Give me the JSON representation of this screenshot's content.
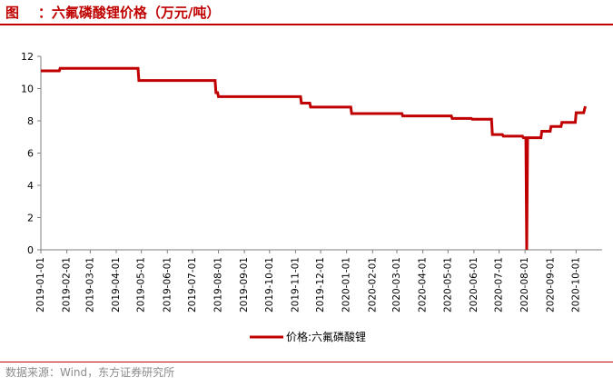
{
  "header": {
    "title": "图    ：六氟磷酸锂价格（万元/吨）"
  },
  "footer": {
    "source": "数据来源：Wind，东方证券研究所"
  },
  "colors": {
    "accent": "#c00000",
    "series": "#c00000",
    "axis": "#7f7f7f",
    "source_text": "#8c8c8c"
  },
  "chart_data": {
    "type": "line",
    "title": "",
    "xlabel": "",
    "ylabel": "",
    "ylim": [
      0,
      12
    ],
    "yticks": [
      "0",
      "2",
      "4",
      "6",
      "8",
      "10",
      "12"
    ],
    "xlim": [
      "2019-01-01",
      "2020-11-01"
    ],
    "xticks": [
      "2019-01-01",
      "2019-02-01",
      "2019-03-01",
      "2019-04-01",
      "2019-05-01",
      "2019-06-01",
      "2019-07-01",
      "2019-08-01",
      "2019-09-01",
      "2019-10-01",
      "2019-11-01",
      "2019-12-01",
      "2020-01-01",
      "2020-02-01",
      "2020-03-01",
      "2020-04-01",
      "2020-05-01",
      "2020-06-01",
      "2020-07-01",
      "2020-08-01",
      "2020-09-01",
      "2020-10-01"
    ],
    "grid": false,
    "legend_position": "bottom",
    "series": [
      {
        "name": "价格:六氟磷酸锂",
        "points": [
          [
            "2019-01-01",
            11.1
          ],
          [
            "2019-01-23",
            11.1
          ],
          [
            "2019-01-24",
            11.25
          ],
          [
            "2019-04-27",
            11.25
          ],
          [
            "2019-04-28",
            10.5
          ],
          [
            "2019-07-28",
            10.5
          ],
          [
            "2019-07-29",
            9.75
          ],
          [
            "2019-07-31",
            9.75
          ],
          [
            "2019-08-01",
            9.5
          ],
          [
            "2019-11-07",
            9.5
          ],
          [
            "2019-11-08",
            9.1
          ],
          [
            "2019-11-18",
            9.1
          ],
          [
            "2019-11-19",
            8.85
          ],
          [
            "2020-01-06",
            8.85
          ],
          [
            "2020-01-07",
            8.45
          ],
          [
            "2020-03-07",
            8.45
          ],
          [
            "2020-03-08",
            8.3
          ],
          [
            "2020-05-05",
            8.3
          ],
          [
            "2020-05-06",
            8.15
          ],
          [
            "2020-05-29",
            8.15
          ],
          [
            "2020-05-30",
            8.1
          ],
          [
            "2020-06-22",
            8.1
          ],
          [
            "2020-06-23",
            7.15
          ],
          [
            "2020-07-05",
            7.15
          ],
          [
            "2020-07-06",
            7.05
          ],
          [
            "2020-07-29",
            7.05
          ],
          [
            "2020-07-30",
            6.95
          ],
          [
            "2020-08-02",
            6.95
          ],
          [
            "2020-08-03",
            0
          ],
          [
            "2020-08-04",
            6.95
          ],
          [
            "2020-08-20",
            6.95
          ],
          [
            "2020-08-21",
            7.35
          ],
          [
            "2020-08-31",
            7.35
          ],
          [
            "2020-09-01",
            7.65
          ],
          [
            "2020-09-13",
            7.65
          ],
          [
            "2020-09-14",
            7.9
          ],
          [
            "2020-09-30",
            7.9
          ],
          [
            "2020-10-01",
            8.5
          ],
          [
            "2020-10-10",
            8.5
          ],
          [
            "2020-10-12",
            8.9
          ]
        ]
      }
    ]
  }
}
